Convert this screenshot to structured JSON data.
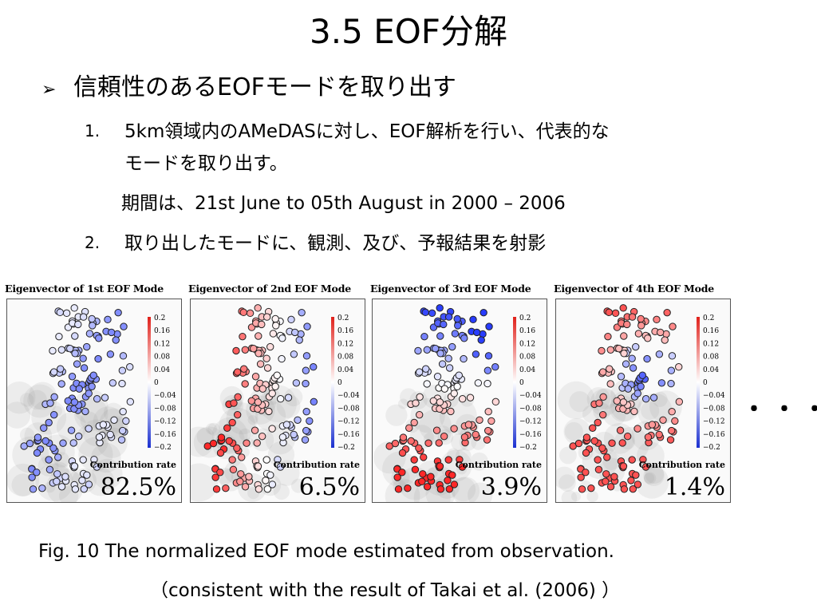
{
  "slide": {
    "title": "3.5 EOF分解",
    "bullet_marker": "➢",
    "bullet": "信頼性のあるEOFモードを取り出す",
    "items": [
      {
        "num": "1.",
        "line1": "5km領域内のAMeDASに対し、EOF解析を行い、代表的な",
        "line2": "モードを取り出す。",
        "line3": "期間は、21st June to 05th August in 2000 – 2006"
      },
      {
        "num": "2.",
        "line1": "取り出したモードに、観測、及び、予報結果を射影"
      }
    ],
    "ellipsis": "・・・",
    "caption_line1": "Fig. 10 The normalized EOF mode estimated from observation.",
    "caption_line2": "（consistent with the result of Takai et al. (2006) ）"
  },
  "panels": [
    {
      "title": "Eigenvector of 1st EOF Mode",
      "contribution_label": "Contribution rate",
      "contribution": "82.5%",
      "pattern": "blue"
    },
    {
      "title": "Eigenvector of 2nd EOF Mode",
      "contribution_label": "Contribution rate",
      "contribution": "6.5%",
      "pattern": "west-red"
    },
    {
      "title": "Eigenvector of 3rd EOF Mode",
      "contribution_label": "Contribution rate",
      "contribution": "3.9%",
      "pattern": "north-blue"
    },
    {
      "title": "Eigenvector of 4th EOF Mode",
      "contribution_label": "Contribution rate",
      "contribution": "1.4%",
      "pattern": "center-blue"
    }
  ],
  "colorbar": {
    "ticks": [
      "0.2",
      "0.16",
      "0.12",
      "0.08",
      "0.04",
      "0",
      "−0.04",
      "−0.08",
      "−0.12",
      "−0.16",
      "−0.2"
    ],
    "colors": {
      "positive": "#e0201a",
      "negative": "#1a2fd0",
      "zero": "#ffffff"
    }
  }
}
